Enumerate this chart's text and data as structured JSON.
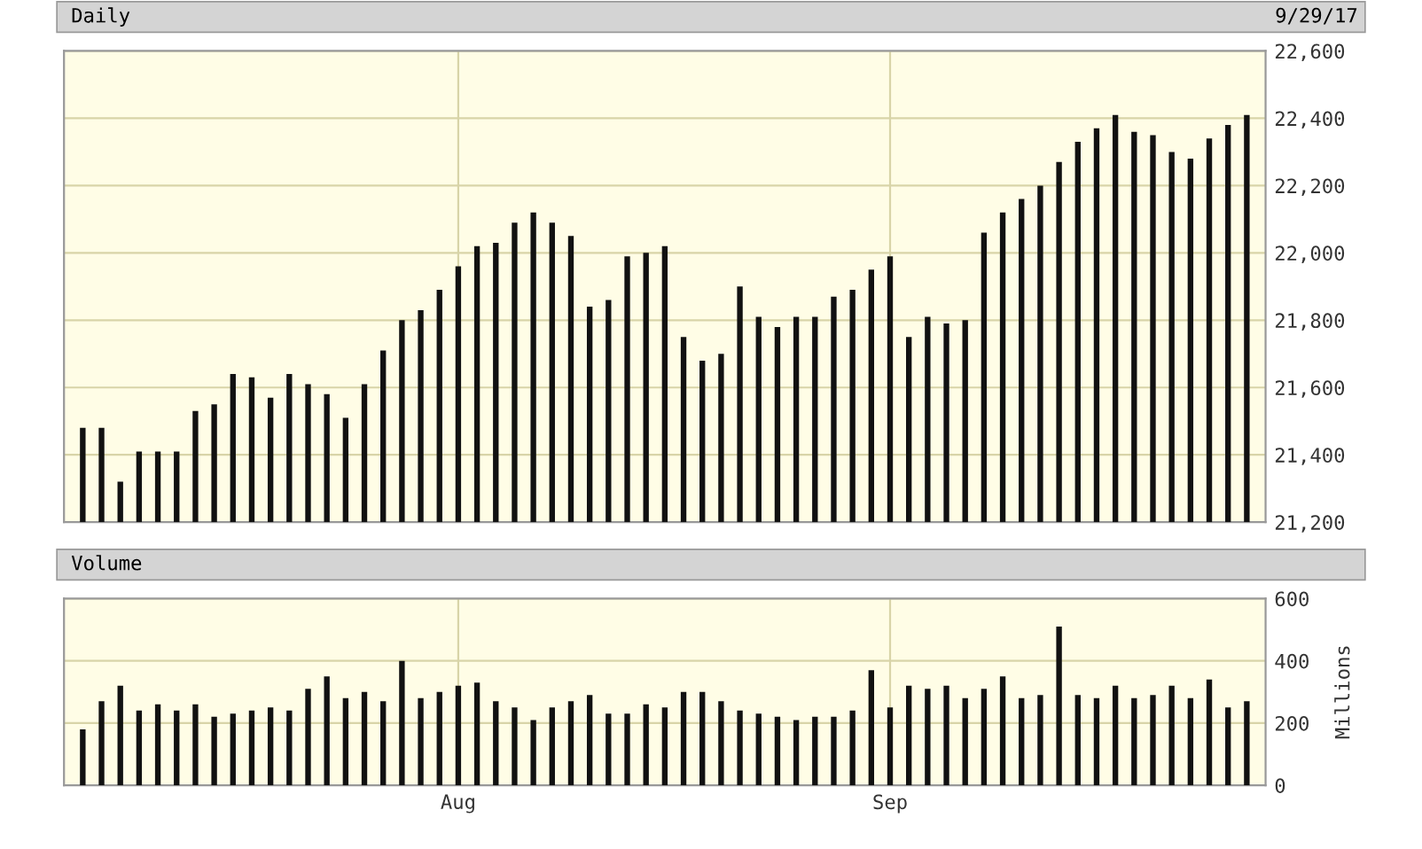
{
  "chart_data": [
    {
      "type": "bar",
      "title": "Daily",
      "annotations": [
        "9/29/17"
      ],
      "categories": [
        null,
        null,
        null,
        null,
        null,
        null,
        null,
        null,
        null,
        null,
        null,
        null,
        null,
        null,
        null,
        null,
        null,
        null,
        null,
        null,
        null,
        null,
        null,
        null,
        null,
        null,
        null,
        null,
        null,
        null,
        null,
        null,
        null,
        null,
        null,
        null,
        null,
        null,
        null,
        null,
        null,
        null,
        null,
        null,
        null,
        null,
        null,
        null,
        null,
        null,
        null,
        null,
        null,
        null,
        null,
        null,
        null,
        null,
        null,
        null,
        null,
        null,
        null
      ],
      "values": [
        21480,
        21480,
        21320,
        21410,
        21410,
        21410,
        21530,
        21550,
        21640,
        21630,
        21570,
        21640,
        21610,
        21580,
        21510,
        21610,
        21710,
        21800,
        21830,
        21890,
        21960,
        22020,
        22030,
        22090,
        22120,
        22090,
        22050,
        21840,
        21860,
        21990,
        22000,
        22020,
        21750,
        21680,
        21700,
        21900,
        21810,
        21780,
        21810,
        21810,
        21870,
        21890,
        21950,
        21990,
        21750,
        21810,
        21790,
        21800,
        22060,
        22120,
        22160,
        22200,
        22270,
        22330,
        22370,
        22410,
        22360,
        22350,
        22300,
        22280,
        22340,
        22380,
        22410
      ],
      "color": "#111111",
      "ylim": [
        21200,
        22600
      ],
      "yticks": [
        {
          "value": 21200,
          "label": "21,200"
        },
        {
          "value": 21400,
          "label": "21,400"
        },
        {
          "value": 21600,
          "label": "21,600"
        },
        {
          "value": 21800,
          "label": "21,800"
        },
        {
          "value": 22000,
          "label": "22,000"
        },
        {
          "value": 22200,
          "label": "22,200"
        },
        {
          "value": 22400,
          "label": "22,400"
        },
        {
          "value": 22600,
          "label": "22,600"
        }
      ],
      "grid": true,
      "tick_labels": "y"
    },
    {
      "type": "bar",
      "title": "Volume",
      "ylabel": "Millions",
      "categories": [
        null,
        null,
        null,
        null,
        null,
        null,
        null,
        null,
        null,
        null,
        null,
        null,
        null,
        null,
        null,
        null,
        null,
        null,
        null,
        null,
        "Aug",
        null,
        null,
        null,
        null,
        null,
        null,
        null,
        null,
        null,
        null,
        null,
        null,
        null,
        null,
        null,
        null,
        null,
        null,
        null,
        null,
        null,
        null,
        "Sep",
        null,
        null,
        null,
        null,
        null,
        null,
        null,
        null,
        null,
        null,
        null,
        null,
        null,
        null,
        null,
        null,
        null,
        null,
        null
      ],
      "values": [
        180,
        270,
        320,
        240,
        260,
        240,
        260,
        220,
        230,
        240,
        250,
        240,
        310,
        350,
        280,
        300,
        270,
        400,
        280,
        300,
        320,
        330,
        270,
        250,
        210,
        250,
        270,
        290,
        230,
        230,
        260,
        250,
        300,
        300,
        270,
        240,
        230,
        220,
        210,
        220,
        220,
        240,
        370,
        250,
        320,
        310,
        320,
        280,
        310,
        350,
        280,
        290,
        510,
        290,
        280,
        320,
        280,
        290,
        320,
        280,
        340,
        250,
        270
      ],
      "color": "#111111",
      "ylim": [
        0,
        600
      ],
      "yticks": [
        0,
        200,
        400,
        600
      ],
      "grid": true
    }
  ]
}
